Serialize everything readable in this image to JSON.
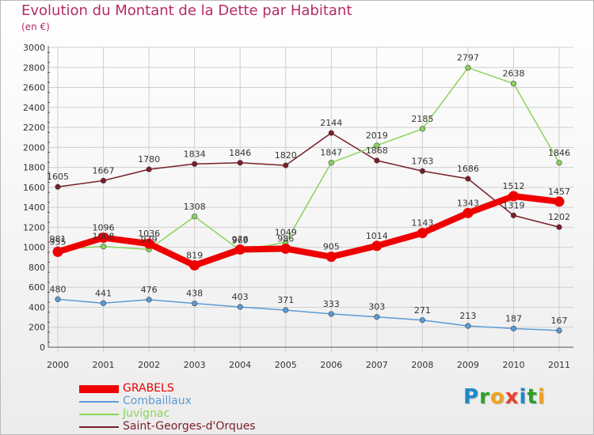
{
  "header": {
    "title": "Evolution du Montant de la Dette par Habitant",
    "subtitle": "(en €)"
  },
  "logo": {
    "text": "Proxiti",
    "letters": [
      {
        "ch": "P",
        "color": "#1e88c8"
      },
      {
        "ch": "r",
        "color": "#2aa02a"
      },
      {
        "ch": "o",
        "color": "#f0a21a"
      },
      {
        "ch": "x",
        "color": "#e8402a"
      },
      {
        "ch": "i",
        "color": "#1e88c8"
      },
      {
        "ch": "t",
        "color": "#2aa02a"
      },
      {
        "ch": "i",
        "color": "#f0a21a"
      }
    ]
  },
  "chart_data": {
    "type": "line",
    "title": "Evolution du Montant de la Dette par Habitant",
    "subtitle": "(en €)",
    "x": [
      "2000",
      "2001",
      "2002",
      "2003",
      "2004",
      "2005",
      "2006",
      "2007",
      "2008",
      "2009",
      "2010",
      "2011"
    ],
    "ylim": [
      0,
      3000
    ],
    "yticks": [
      0,
      200,
      400,
      600,
      800,
      1000,
      1200,
      1400,
      1600,
      1800,
      2000,
      2200,
      2400,
      2600,
      2800,
      3000
    ],
    "grid": true,
    "legend_position": "bottom-left",
    "series": [
      {
        "name": "Saint-Georges-d'Orques",
        "color": "#7a1e28",
        "emphasis": false,
        "values": [
          1605,
          1667,
          1780,
          1834,
          1846,
          1820,
          2144,
          1868,
          1763,
          1686,
          1319,
          1202
        ]
      },
      {
        "name": "Juvignac",
        "color": "#88d45a",
        "emphasis": false,
        "values": [
          981,
          1008,
          979,
          1308,
          969,
          1049,
          1847,
          2019,
          2185,
          2797,
          2638,
          1846
        ]
      },
      {
        "name": "Combaillaux",
        "color": "#5b9bd5",
        "emphasis": false,
        "values": [
          480,
          441,
          476,
          438,
          403,
          371,
          333,
          303,
          271,
          213,
          187,
          167
        ]
      },
      {
        "name": "GRABELS",
        "color": "#ee0000",
        "emphasis": true,
        "values": [
          955,
          1096,
          1036,
          819,
          978,
          986,
          905,
          1014,
          1143,
          1343,
          1512,
          1457
        ]
      }
    ]
  },
  "legend": {
    "items": [
      {
        "label": "GRABELS",
        "color": "#ee0000",
        "thick": true
      },
      {
        "label": "Combaillaux",
        "color": "#5b9bd5",
        "thick": false
      },
      {
        "label": "Juvignac",
        "color": "#88d45a",
        "thick": false
      },
      {
        "label": "Saint-Georges-d'Orques",
        "color": "#7a1e28",
        "thick": false
      }
    ]
  }
}
